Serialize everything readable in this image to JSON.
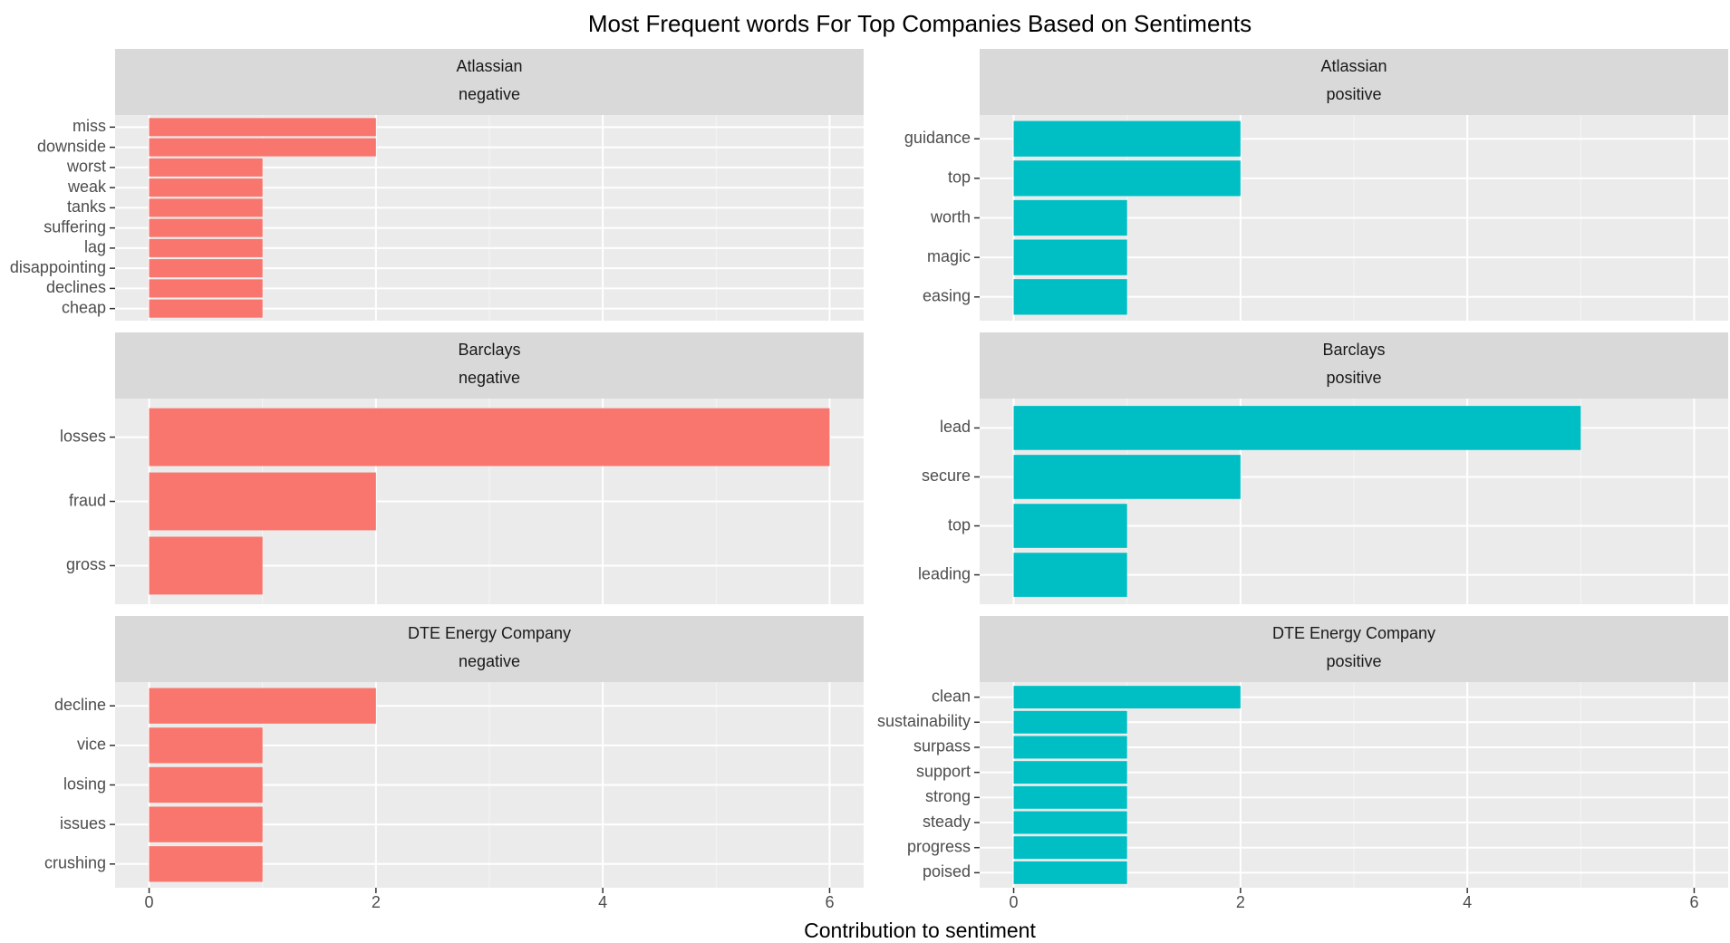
{
  "chart_data": {
    "type": "bar",
    "orientation": "horizontal",
    "title": "Most Frequent words For Top Companies Based on Sentiments",
    "xlabel": "Contribution to sentiment",
    "ylabel": "",
    "xlim": [
      -0.3,
      6.3
    ],
    "xticks": [
      0,
      2,
      4,
      6
    ],
    "grid": true,
    "facet_rows": [
      "Atlassian",
      "Barclays",
      "DTE Energy Company"
    ],
    "facet_cols": [
      "negative",
      "positive"
    ],
    "colors": {
      "negative": "#F8766D",
      "positive": "#00BFC4"
    },
    "panels": [
      {
        "company": "Atlassian",
        "sentiment": "negative",
        "categories": [
          "miss",
          "downside",
          "worst",
          "weak",
          "tanks",
          "suffering",
          "lag",
          "disappointing",
          "declines",
          "cheap"
        ],
        "values": [
          2,
          2,
          1,
          1,
          1,
          1,
          1,
          1,
          1,
          1
        ]
      },
      {
        "company": "Atlassian",
        "sentiment": "positive",
        "categories": [
          "guidance",
          "top",
          "worth",
          "magic",
          "easing"
        ],
        "values": [
          2,
          2,
          1,
          1,
          1
        ]
      },
      {
        "company": "Barclays",
        "sentiment": "negative",
        "categories": [
          "losses",
          "fraud",
          "gross"
        ],
        "values": [
          6,
          2,
          1
        ]
      },
      {
        "company": "Barclays",
        "sentiment": "positive",
        "categories": [
          "lead",
          "secure",
          "top",
          "leading"
        ],
        "values": [
          5,
          2,
          1,
          1
        ]
      },
      {
        "company": "DTE Energy Company",
        "sentiment": "negative",
        "categories": [
          "decline",
          "vice",
          "losing",
          "issues",
          "crushing"
        ],
        "values": [
          2,
          1,
          1,
          1,
          1
        ]
      },
      {
        "company": "DTE Energy Company",
        "sentiment": "positive",
        "categories": [
          "clean",
          "sustainability",
          "surpass",
          "support",
          "strong",
          "steady",
          "progress",
          "poised"
        ],
        "values": [
          2,
          1,
          1,
          1,
          1,
          1,
          1,
          1
        ]
      }
    ]
  }
}
